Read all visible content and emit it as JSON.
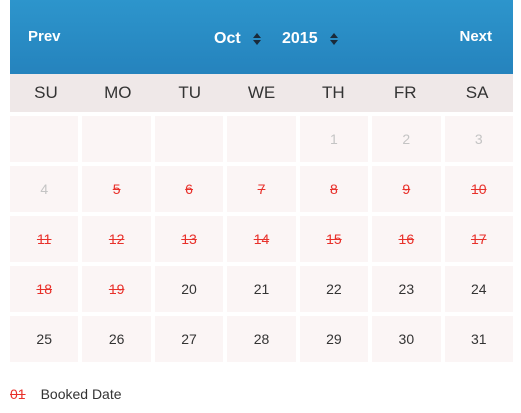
{
  "header": {
    "prev_label": "Prev",
    "next_label": "Next",
    "month": "Oct",
    "year": "2015"
  },
  "weekdays": [
    "SU",
    "MO",
    "TU",
    "WE",
    "TH",
    "FR",
    "SA"
  ],
  "weeks": [
    [
      {
        "d": "",
        "s": "empty"
      },
      {
        "d": "",
        "s": "empty"
      },
      {
        "d": "",
        "s": "empty"
      },
      {
        "d": "",
        "s": "empty"
      },
      {
        "d": "1",
        "s": "other"
      },
      {
        "d": "2",
        "s": "other"
      },
      {
        "d": "3",
        "s": "other"
      }
    ],
    [
      {
        "d": "4",
        "s": "other"
      },
      {
        "d": "5",
        "s": "booked"
      },
      {
        "d": "6",
        "s": "booked"
      },
      {
        "d": "7",
        "s": "booked"
      },
      {
        "d": "8",
        "s": "booked"
      },
      {
        "d": "9",
        "s": "booked"
      },
      {
        "d": "10",
        "s": "booked"
      }
    ],
    [
      {
        "d": "11",
        "s": "booked"
      },
      {
        "d": "12",
        "s": "booked"
      },
      {
        "d": "13",
        "s": "booked"
      },
      {
        "d": "14",
        "s": "booked"
      },
      {
        "d": "15",
        "s": "booked"
      },
      {
        "d": "16",
        "s": "booked"
      },
      {
        "d": "17",
        "s": "booked"
      }
    ],
    [
      {
        "d": "18",
        "s": "booked"
      },
      {
        "d": "19",
        "s": "booked"
      },
      {
        "d": "20",
        "s": "avail"
      },
      {
        "d": "21",
        "s": "avail"
      },
      {
        "d": "22",
        "s": "avail"
      },
      {
        "d": "23",
        "s": "avail"
      },
      {
        "d": "24",
        "s": "avail"
      }
    ],
    [
      {
        "d": "25",
        "s": "avail"
      },
      {
        "d": "26",
        "s": "avail"
      },
      {
        "d": "27",
        "s": "avail"
      },
      {
        "d": "28",
        "s": "avail"
      },
      {
        "d": "29",
        "s": "avail"
      },
      {
        "d": "30",
        "s": "avail"
      },
      {
        "d": "31",
        "s": "avail"
      }
    ]
  ],
  "legend": {
    "sample": "01",
    "label": "Booked Date"
  },
  "colors": {
    "header_bg": "#2a8ec8",
    "booked": "#e8302a",
    "cell_bg": "#fbf5f5",
    "weekday_bg": "#efe8e8"
  },
  "icons": {
    "select_arrows": "updown-arrows-icon"
  }
}
